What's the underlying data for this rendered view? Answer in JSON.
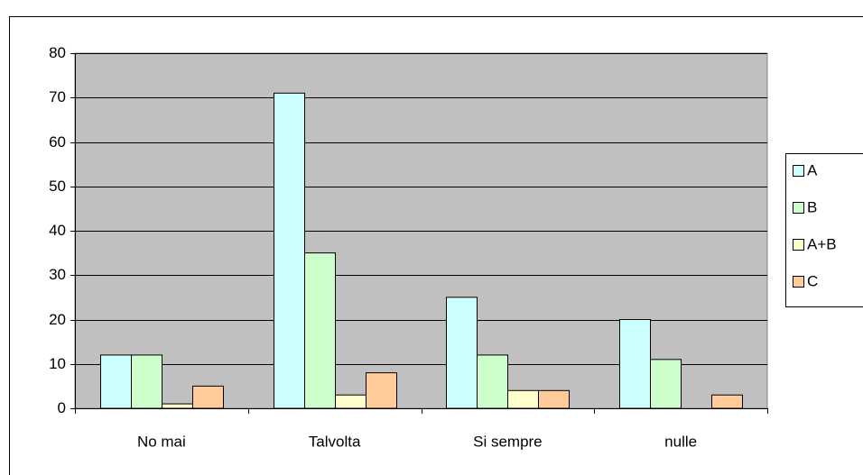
{
  "chart_data": {
    "type": "bar",
    "categories": [
      "No mai",
      "Talvolta",
      "Si sempre",
      "nulle"
    ],
    "series": [
      {
        "name": "A",
        "color": "#ccffff",
        "values": [
          12,
          71,
          25,
          20
        ]
      },
      {
        "name": "B",
        "color": "#ccffcc",
        "values": [
          12,
          35,
          12,
          11
        ]
      },
      {
        "name": "A+B",
        "color": "#ffffcc",
        "values": [
          1,
          3,
          4,
          0
        ]
      },
      {
        "name": "C",
        "color": "#ffcc99",
        "values": [
          5,
          8,
          4,
          3
        ]
      }
    ],
    "ylim": [
      0,
      80
    ],
    "yticks": [
      0,
      10,
      20,
      30,
      40,
      50,
      60,
      70,
      80
    ],
    "grid": true,
    "plot_background": "#c0c0c0",
    "legend": "right"
  }
}
